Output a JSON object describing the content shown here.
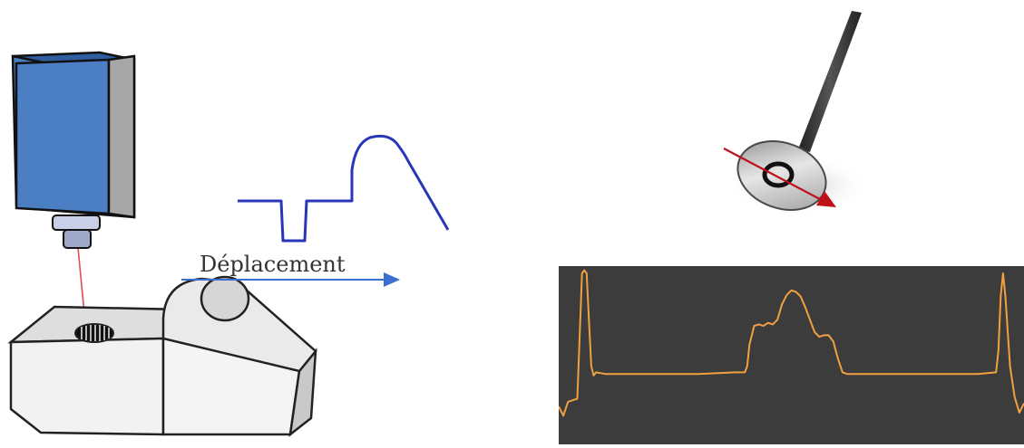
{
  "figure": {
    "movement_label": "Déplacement",
    "colors": {
      "sensor_blue": "#4a7fc6",
      "profile_blue": "#2a36b8",
      "arrow_blue": "#3a6fd1",
      "laser_red": "#e05050",
      "trajectory_red": "#c0111a",
      "plot_background": "#3c3c3c",
      "plot_line": "#f0a040"
    }
  },
  "chart_data": {
    "type": "line",
    "title": "",
    "xlabel": "",
    "ylabel": "",
    "xlim": [
      0,
      100
    ],
    "ylim": [
      0,
      100
    ],
    "grid": false,
    "series": [
      {
        "x": [
          0,
          1,
          2,
          4,
          5,
          5.5,
          6,
          6.5,
          7,
          7.5,
          8,
          10,
          20,
          30,
          38,
          40,
          40.5,
          41,
          42,
          43,
          44,
          45,
          46,
          47,
          48,
          49,
          50,
          51,
          52,
          53,
          54,
          55,
          56,
          57,
          58,
          59,
          60,
          61,
          62,
          63,
          64,
          65,
          70,
          80,
          90,
          94,
          94.5,
          95,
          95.5,
          96,
          97,
          98,
          99,
          100
        ],
        "y": [
          14,
          8,
          17,
          19,
          100,
          102,
          100,
          70,
          40,
          34,
          36,
          35,
          35,
          35,
          36,
          36,
          40,
          54,
          66,
          67,
          66,
          68,
          67,
          70,
          80,
          86,
          89,
          88,
          85,
          78,
          70,
          62,
          59,
          60,
          60,
          56,
          45,
          36,
          35,
          35,
          35,
          35,
          35,
          35,
          35,
          36,
          50,
          85,
          100,
          85,
          40,
          20,
          10,
          16
        ]
      }
    ]
  }
}
